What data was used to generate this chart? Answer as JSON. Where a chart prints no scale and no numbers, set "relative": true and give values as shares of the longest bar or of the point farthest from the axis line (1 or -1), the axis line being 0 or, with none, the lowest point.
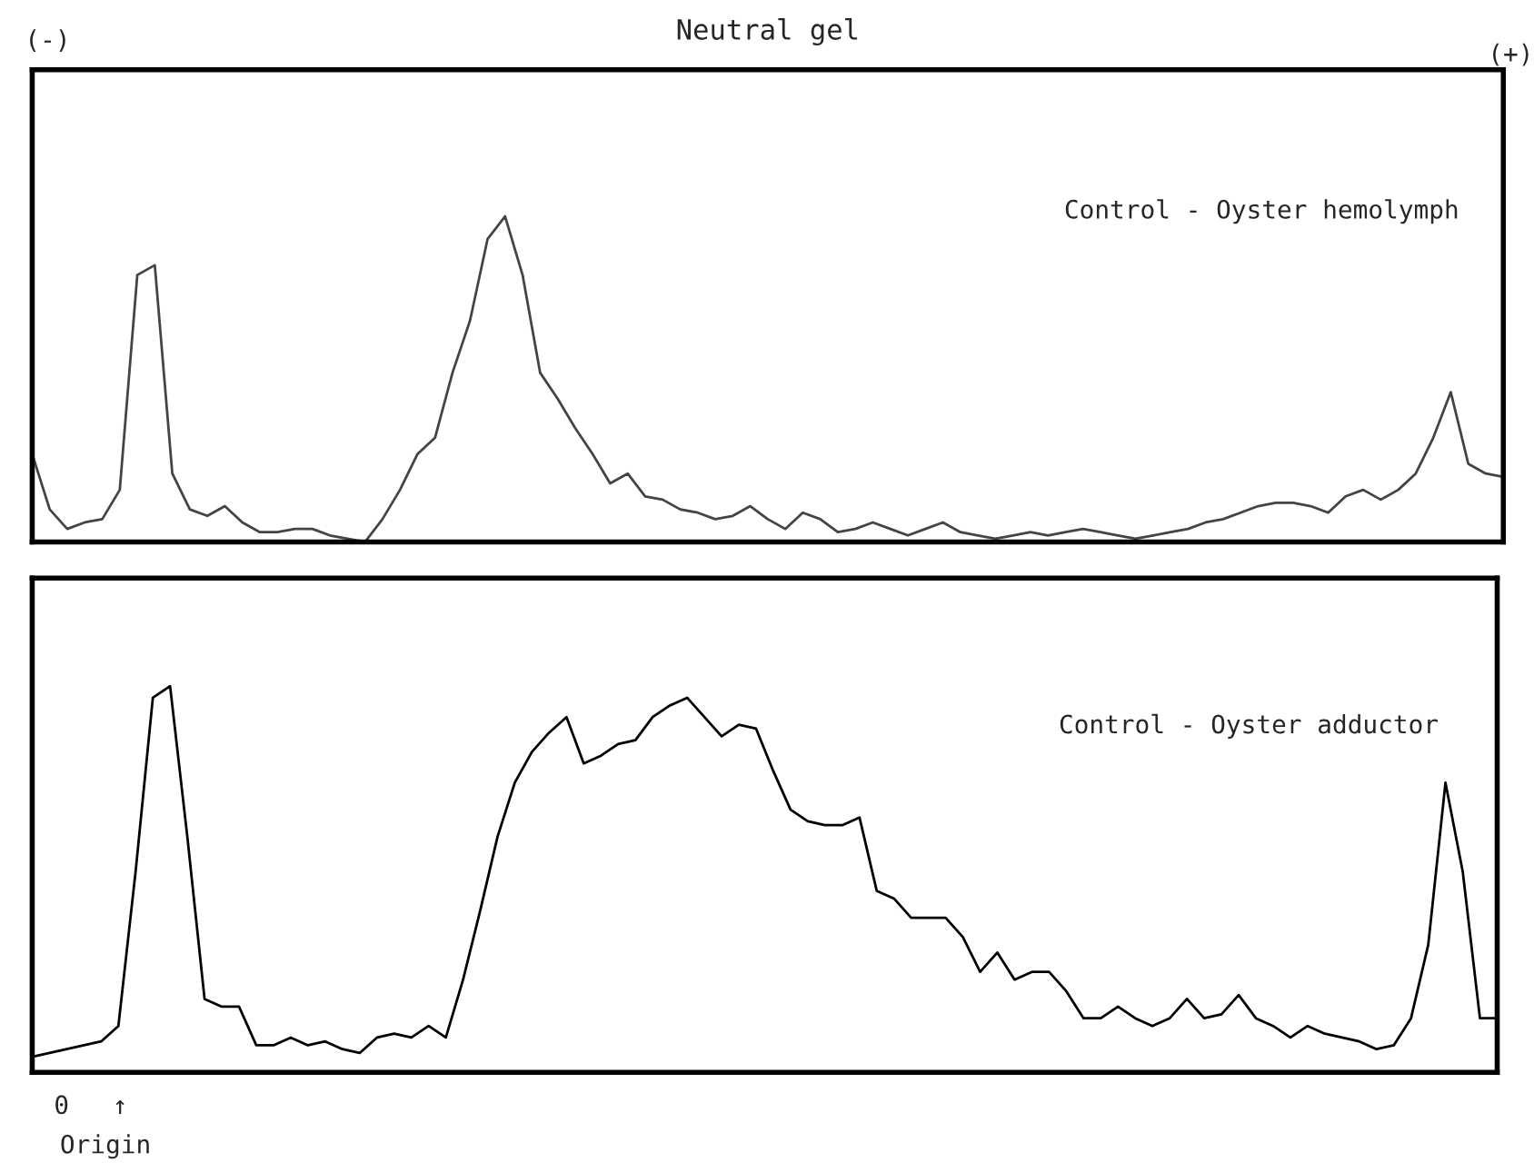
{
  "chart_data": [
    {
      "type": "line",
      "title": "Neutral gel",
      "relative": true,
      "tick_labels": false,
      "legend": false,
      "categories": [
        null,
        null,
        null,
        null,
        null,
        null,
        null,
        null,
        null,
        null,
        null,
        null,
        null,
        null,
        null,
        null,
        null,
        null,
        null,
        null,
        null,
        null,
        null,
        null,
        null,
        null,
        null,
        null,
        null,
        null,
        null,
        null,
        null,
        null,
        null,
        null,
        null,
        null,
        null,
        null,
        null,
        null,
        null,
        null,
        null,
        null,
        null,
        null,
        null,
        null,
        null,
        null,
        null,
        null,
        null,
        null,
        null,
        null,
        null,
        null,
        null,
        null,
        null,
        null,
        null,
        null,
        null,
        null,
        null,
        null,
        null,
        null,
        null,
        null,
        null,
        null,
        null,
        null,
        null,
        null,
        null,
        null,
        null,
        null,
        null
      ],
      "series": [
        {
          "color": "#444444",
          "values": [
            0.27,
            0.1,
            0.04,
            0.06,
            0.07,
            0.16,
            0.82,
            0.85,
            0.21,
            0.1,
            0.08,
            0.11,
            0.06,
            0.03,
            0.03,
            0.04,
            0.04,
            0.02,
            0.01,
            0.0,
            0.07,
            0.16,
            0.27,
            0.32,
            0.52,
            0.68,
            0.93,
            1.0,
            0.82,
            0.52,
            0.44,
            0.35,
            0.27,
            0.18,
            0.21,
            0.14,
            0.13,
            0.1,
            0.09,
            0.07,
            0.08,
            0.11,
            0.07,
            0.04,
            0.09,
            0.07,
            0.03,
            0.04,
            0.06,
            0.04,
            0.02,
            0.04,
            0.06,
            0.03,
            0.02,
            0.01,
            0.02,
            0.03,
            0.02,
            0.03,
            0.04,
            0.03,
            0.02,
            0.01,
            0.02,
            0.03,
            0.04,
            0.06,
            0.07,
            0.09,
            0.11,
            0.12,
            0.12,
            0.11,
            0.09,
            0.14,
            0.16,
            0.13,
            0.16,
            0.21,
            0.32,
            0.46,
            0.24,
            0.21,
            0.2
          ]
        }
      ],
      "annotations": [
        "(-)",
        "(+)",
        "Control - Oyster hemolymph"
      ]
    },
    {
      "type": "line",
      "relative": true,
      "tick_labels": false,
      "legend": false,
      "categories": [
        null,
        null,
        null,
        null,
        null,
        null,
        null,
        null,
        null,
        null,
        null,
        null,
        null,
        null,
        null,
        null,
        null,
        null,
        null,
        null,
        null,
        null,
        null,
        null,
        null,
        null,
        null,
        null,
        null,
        null,
        null,
        null,
        null,
        null,
        null,
        null,
        null,
        null,
        null,
        null,
        null,
        null,
        null,
        null,
        null,
        null,
        null,
        null,
        null,
        null,
        null,
        null,
        null,
        null,
        null,
        null,
        null,
        null,
        null,
        null,
        null,
        null,
        null,
        null,
        null,
        null,
        null,
        null,
        null,
        null,
        null,
        null,
        null,
        null,
        null,
        null,
        null,
        null,
        null,
        null,
        null,
        null,
        null,
        null,
        null,
        null
      ],
      "series": [
        {
          "color": "#000000",
          "values": [
            0.04,
            0.05,
            0.06,
            0.07,
            0.08,
            0.12,
            0.52,
            0.97,
            1.0,
            0.61,
            0.19,
            0.17,
            0.17,
            0.07,
            0.07,
            0.09,
            0.07,
            0.08,
            0.06,
            0.05,
            0.09,
            0.1,
            0.09,
            0.12,
            0.09,
            0.24,
            0.42,
            0.61,
            0.75,
            0.83,
            0.88,
            0.92,
            0.8,
            0.82,
            0.85,
            0.86,
            0.92,
            0.95,
            0.97,
            0.92,
            0.87,
            0.9,
            0.89,
            0.78,
            0.68,
            0.65,
            0.64,
            0.64,
            0.66,
            0.47,
            0.45,
            0.4,
            0.4,
            0.4,
            0.35,
            0.26,
            0.31,
            0.24,
            0.26,
            0.26,
            0.21,
            0.14,
            0.14,
            0.17,
            0.14,
            0.12,
            0.14,
            0.19,
            0.14,
            0.15,
            0.2,
            0.14,
            0.12,
            0.09,
            0.12,
            0.1,
            0.09,
            0.08,
            0.06,
            0.07,
            0.14,
            0.33,
            0.75,
            0.52,
            0.14,
            0.14
          ]
        }
      ],
      "annotations": [
        "Control - Oyster adductor",
        "0",
        "↑",
        "Origin"
      ]
    }
  ]
}
